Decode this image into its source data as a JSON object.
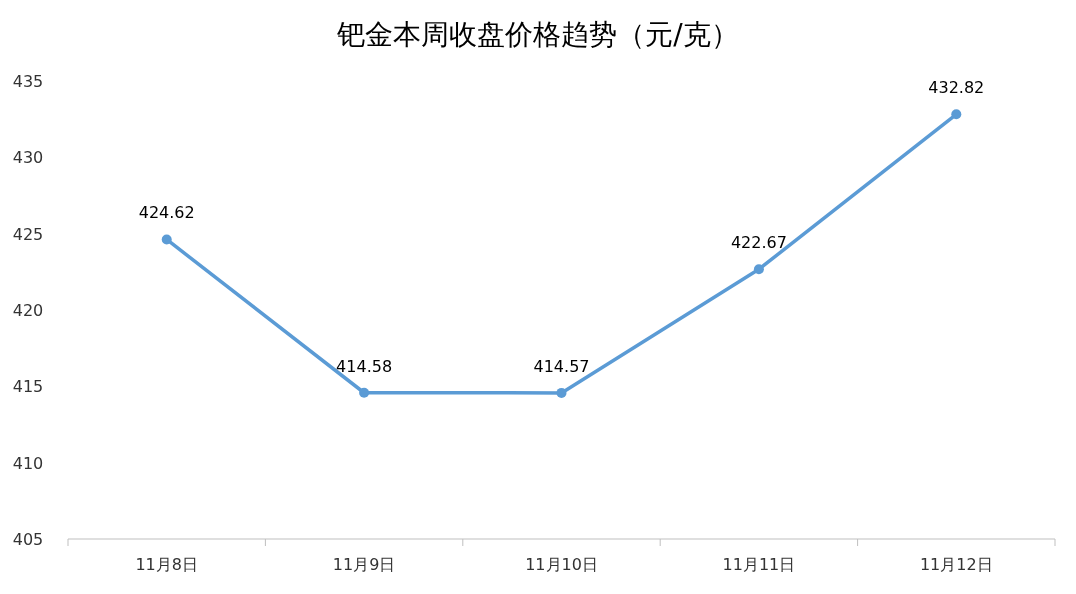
{
  "chart_data": {
    "type": "line",
    "title": "钯金本周收盘价格趋势（元/克）",
    "categories": [
      "11月8日",
      "11月9日",
      "11月10日",
      "11月11日",
      "11月12日"
    ],
    "values": [
      424.62,
      414.58,
      414.57,
      422.67,
      432.82
    ],
    "color": "#5b9bd5",
    "ylim": [
      405,
      435
    ],
    "yticks": [
      405,
      410,
      415,
      420,
      425,
      430,
      435
    ],
    "data_labels": true,
    "marker": "circle"
  }
}
